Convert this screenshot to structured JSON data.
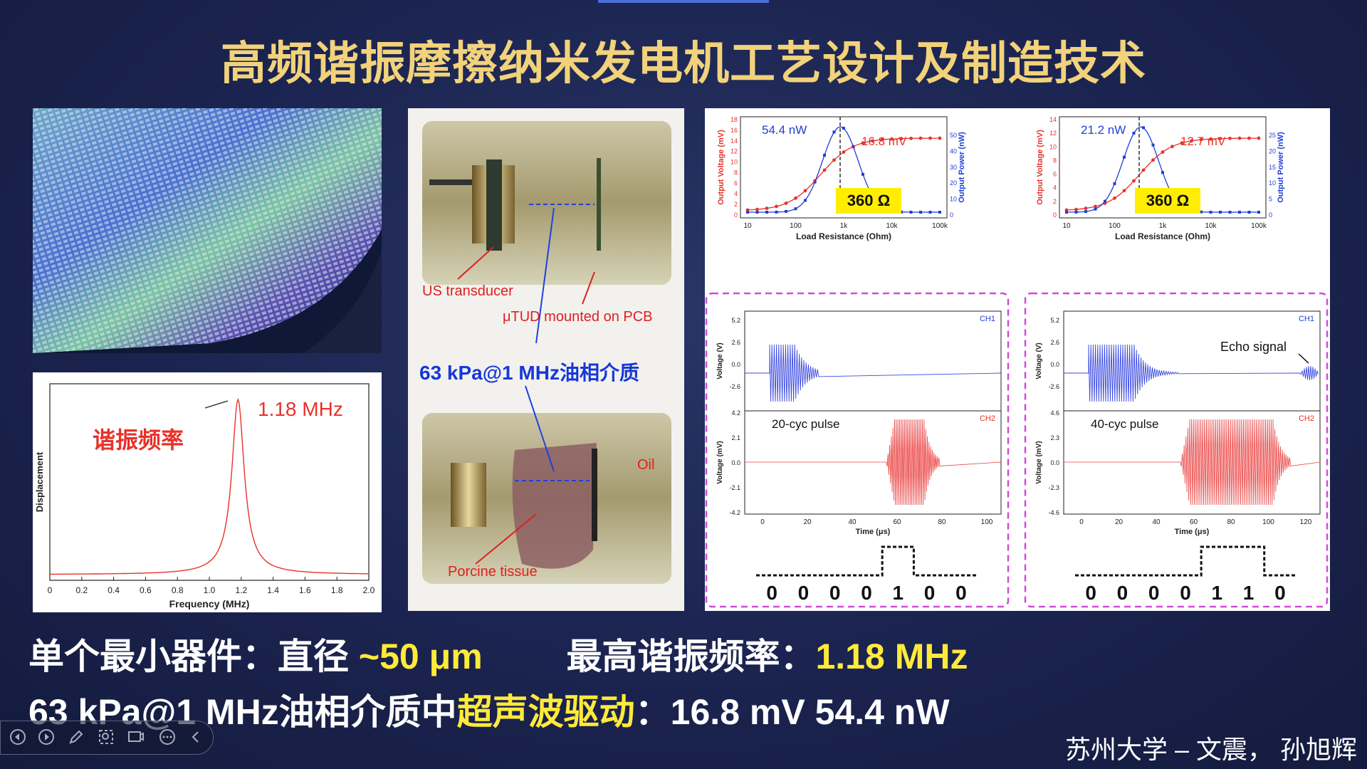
{
  "title": "高频谐振摩擦纳米发电机工艺设计及制造技术",
  "freq_plot": {
    "annotation": "1.18 MHz",
    "label_cn": "谐振频率",
    "ylabel": "Displacement",
    "xlabel": "Frequency (MHz)",
    "xticks": [
      "0",
      "0.2",
      "0.4",
      "0.6",
      "0.8",
      "1.0",
      "1.2",
      "1.4",
      "1.6",
      "1.8",
      "2.0"
    ],
    "line_color": "#e8322a"
  },
  "photo": {
    "us_transducer": "US transducer",
    "mounted": "μTUD mounted on PCB",
    "caption": "63 kPa@1 MHz油相介质",
    "oil": "Oil",
    "tissue": "Porcine tissue"
  },
  "chart_left": {
    "power_label": "54.4 nW",
    "voltage_label": "16.8 mV",
    "resistance": "360 Ω",
    "xlabel": "Load Resistance (Ohm)",
    "ylabel_left": "Output Voltage (mV)",
    "ylabel_right": "Output Power (nW)",
    "xticks": [
      "10",
      "100",
      "1k",
      "10k",
      "100k"
    ],
    "yticks_left": [
      "0",
      "2",
      "4",
      "6",
      "8",
      "10",
      "12",
      "14",
      "16",
      "18"
    ],
    "yticks_right": [
      "0",
      "10",
      "20",
      "30",
      "40",
      "50"
    ]
  },
  "chart_right": {
    "power_label": "21.2 nW",
    "voltage_label": "12.7 mV",
    "resistance": "360 Ω",
    "xlabel": "Load Resistance (Ohm)",
    "ylabel_left": "Output Voltage (mV)",
    "ylabel_right": "Output Power (nW)",
    "xticks": [
      "10",
      "100",
      "1k",
      "10k",
      "100k"
    ],
    "yticks_left": [
      "0",
      "2",
      "4",
      "6",
      "8",
      "10",
      "12",
      "14"
    ],
    "yticks_right": [
      "0",
      "5",
      "10",
      "15",
      "20",
      "25"
    ]
  },
  "scope_left": {
    "ch1": "CH1",
    "ch2": "CH2",
    "pulse": "20-cyc pulse",
    "ylabel1": "Voltage (V)",
    "ylabel2": "Voltage (mV)",
    "xlabel": "Time (μs)",
    "yticks1": [
      "5.2",
      "2.6",
      "0.0",
      "-2.6"
    ],
    "yticks2": [
      "4.2",
      "2.1",
      "0.0",
      "-2.1",
      "-4.2"
    ],
    "xticks": [
      "0",
      "20",
      "40",
      "60",
      "80",
      "100"
    ],
    "bits": [
      "0",
      "0",
      "0",
      "0",
      "1",
      "0",
      "0"
    ]
  },
  "scope_right": {
    "ch1": "CH1",
    "ch2": "CH2",
    "pulse": "40-cyc pulse",
    "echo": "Echo signal",
    "ylabel1": "Voltage (V)",
    "ylabel2": "Voltage (mV)",
    "xlabel": "Time (μs)",
    "yticks1": [
      "5.2",
      "2.6",
      "0.0",
      "-2.6"
    ],
    "yticks2": [
      "4.6",
      "2.3",
      "0.0",
      "-2.3",
      "-4.6"
    ],
    "xticks": [
      "0",
      "20",
      "40",
      "60",
      "80",
      "100",
      "120"
    ],
    "bits": [
      "0",
      "0",
      "0",
      "0",
      "1",
      "1",
      "0"
    ]
  },
  "bottom": {
    "l1_a": "单个最小器件：直径 ",
    "l1_b": "~50 μm",
    "l1_c": "最高谐振频率：",
    "l1_d": "1.18 MHz",
    "l2_a": "63 kPa@1 MHz油相介质中",
    "l2_b": "超声波驱动",
    "l2_c": "：16.8 mV  54.4 nW"
  },
  "credit": "苏州大学 – 文震， 孙旭辉",
  "colors": {
    "title": "#f2d27a",
    "highlight": "#ffea3a",
    "power": "#1f3fd6",
    "voltage": "#e8322a",
    "dash_box": "#d24ad8",
    "label_box": "#ffee00"
  },
  "toolbar_icons": [
    "prev-icon",
    "next-icon",
    "pen-icon",
    "zoom-icon",
    "screen-icon",
    "more-icon",
    "collapse-icon"
  ]
}
